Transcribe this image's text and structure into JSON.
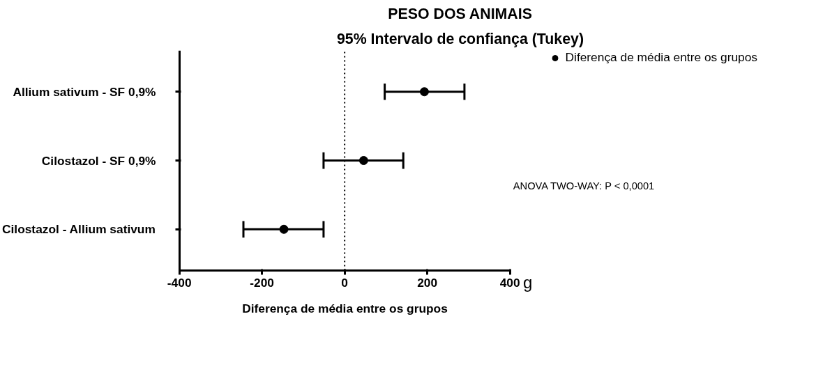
{
  "chart_data": {
    "type": "scatter",
    "title": "PESO DOS ANIMAIS",
    "subtitle": "95% Intervalo de confiança (Tukey)",
    "xlabel": "Diferença de média entre os grupos",
    "orientation": "horizontal",
    "categories": [
      "Allium sativum - SF 0,9%",
      "Cilostazol - SF 0,9%",
      "Cilostazol - Allium sativum"
    ],
    "series": [
      {
        "name": "Diferença de média entre os grupos",
        "color": "#000000",
        "values": [
          193,
          46,
          -147
        ],
        "errors": [
          [
            97,
            290
          ],
          [
            -51,
            142
          ],
          [
            -245,
            -51
          ]
        ]
      }
    ],
    "xlim": [
      -400,
      400
    ],
    "xticks": [
      -400,
      -200,
      0,
      200,
      400
    ],
    "grid": false,
    "legend": "top right",
    "marker": "circle",
    "ref_lines": [
      {
        "axis": "x",
        "value": 0,
        "line_style": "dotted",
        "color": "#000000"
      }
    ],
    "annotations": [
      "g",
      "ANOVA TWO-WAY: P < 0,0001"
    ]
  }
}
